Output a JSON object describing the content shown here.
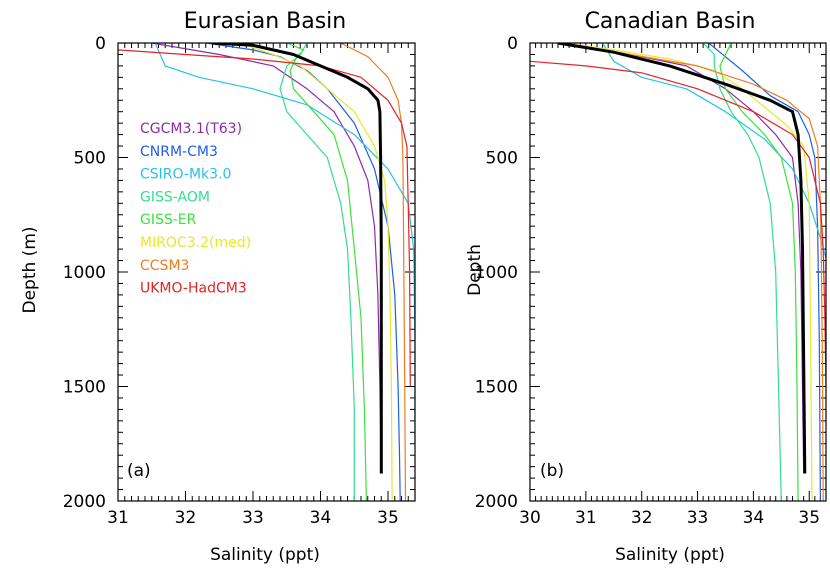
{
  "chart_data": [
    {
      "type": "line",
      "title": "Eurasian Basin",
      "xlabel": "Salinity (ppt)",
      "ylabel": "Depth (m)",
      "panel_label": "(a)",
      "xlim": [
        31,
        35.4
      ],
      "ylim": [
        0,
        2000
      ],
      "y_inverted": true,
      "x_ticks": [
        31,
        32,
        33,
        34,
        35
      ],
      "y_ticks": [
        0,
        500,
        1000,
        1500,
        2000
      ],
      "legend_position": "left-middle",
      "series": [
        {
          "name": "CGCM3.1(T63)",
          "color": "#8e2aa8",
          "x": [
            31.5,
            32.5,
            33.3,
            33.8,
            34.2,
            34.5,
            34.7,
            34.8,
            34.85,
            34.88,
            34.9
          ],
          "y": [
            0,
            50,
            100,
            200,
            300,
            450,
            600,
            800,
            1100,
            1500,
            1880
          ]
        },
        {
          "name": "CNRM-CM3",
          "color": "#1f5fe0",
          "x": [
            32.3,
            33.0,
            33.4,
            33.8,
            34.1,
            34.5,
            34.8,
            35.0,
            35.1,
            35.15,
            35.17,
            35.18
          ],
          "y": [
            0,
            30,
            60,
            120,
            200,
            350,
            550,
            800,
            1100,
            1500,
            1800,
            2000
          ]
        },
        {
          "name": "CSIRO-Mk3.0",
          "color": "#27c3e6",
          "x": [
            31.55,
            31.7,
            32.2,
            33.0,
            33.8,
            34.5,
            35.0,
            35.3,
            35.38,
            35.4,
            35.4
          ],
          "y": [
            0,
            100,
            150,
            200,
            270,
            400,
            550,
            700,
            900,
            1300,
            1750
          ]
        },
        {
          "name": "GISS-AOM",
          "color": "#33dd8f",
          "x": [
            33.8,
            33.7,
            33.5,
            33.4,
            33.5,
            33.8,
            34.1,
            34.3,
            34.4,
            34.45,
            34.5,
            34.5
          ],
          "y": [
            0,
            50,
            100,
            200,
            300,
            400,
            500,
            700,
            900,
            1200,
            1600,
            2000
          ]
        },
        {
          "name": "GISS-ER",
          "color": "#3ee03e",
          "x": [
            33.5,
            33.75,
            33.65,
            33.55,
            33.6,
            33.9,
            34.2,
            34.4,
            34.5,
            34.6,
            34.65,
            34.68
          ],
          "y": [
            0,
            30,
            60,
            120,
            200,
            300,
            400,
            600,
            900,
            1200,
            1600,
            2000
          ]
        },
        {
          "name": "MIROC3.2(med)",
          "color": "#e8e82a",
          "x": [
            32.8,
            33.3,
            33.7,
            34.1,
            34.5,
            34.8,
            34.95,
            35.0,
            35.03,
            35.05,
            35.06
          ],
          "y": [
            0,
            50,
            100,
            200,
            300,
            450,
            600,
            800,
            1100,
            1500,
            2000
          ]
        },
        {
          "name": "CCSM3",
          "color": "#f07d22",
          "x": [
            34.3,
            34.7,
            35.0,
            35.15,
            35.2,
            35.22,
            35.23,
            35.24,
            35.25,
            35.26
          ],
          "y": [
            0,
            60,
            150,
            250,
            350,
            500,
            800,
            1200,
            1600,
            2000
          ]
        },
        {
          "name": "UKMO-HadCM3",
          "color": "#e52323",
          "x": [
            31.0,
            32.0,
            33.0,
            34.0,
            34.6,
            35.0,
            35.2,
            35.28,
            35.3,
            35.32,
            35.33
          ],
          "y": [
            30,
            50,
            70,
            100,
            150,
            250,
            350,
            450,
            700,
            1000,
            1500
          ]
        },
        {
          "name": "",
          "color": "#000000",
          "width": 3,
          "x": [
            32.4,
            33.0,
            33.6,
            34.0,
            34.4,
            34.7,
            34.85,
            34.88,
            34.89,
            34.9,
            34.9,
            34.9
          ],
          "y": [
            0,
            10,
            50,
            100,
            150,
            200,
            250,
            300,
            500,
            900,
            1400,
            1880
          ]
        }
      ]
    },
    {
      "type": "line",
      "title": "Canadian Basin",
      "xlabel": "Salinity (ppt)",
      "ylabel": "Depth",
      "panel_label": "(b)",
      "xlim": [
        30,
        35.3
      ],
      "ylim": [
        0,
        2000
      ],
      "y_inverted": true,
      "x_ticks": [
        30,
        31,
        32,
        33,
        34,
        35
      ],
      "y_ticks": [
        0,
        500,
        1000,
        1500,
        2000
      ],
      "series": [
        {
          "name": "CGCM3.1(T63)",
          "color": "#8e2aa8",
          "x": [
            30.6,
            31.3,
            32.0,
            32.8,
            33.5,
            34.0,
            34.4,
            34.7,
            34.8,
            34.85,
            34.9
          ],
          "y": [
            0,
            30,
            60,
            100,
            200,
            300,
            400,
            500,
            700,
            1000,
            1880
          ]
        },
        {
          "name": "CNRM-CM3",
          "color": "#1f5fe0",
          "x": [
            33.2,
            33.4,
            33.8,
            34.3,
            34.8,
            35.0,
            35.1,
            35.15,
            35.18,
            35.2
          ],
          "y": [
            0,
            40,
            120,
            230,
            300,
            400,
            500,
            800,
            1300,
            2000
          ]
        },
        {
          "name": "CSIRO-Mk3.0",
          "color": "#27c3e6",
          "x": [
            31.3,
            31.5,
            32.0,
            32.8,
            33.5,
            34.2,
            34.7,
            35.0,
            35.2,
            35.3
          ],
          "y": [
            0,
            80,
            150,
            200,
            300,
            420,
            550,
            700,
            850,
            940
          ]
        },
        {
          "name": "GISS-AOM",
          "color": "#33dd8f",
          "x": [
            33.1,
            33.3,
            33.3,
            33.4,
            33.6,
            33.9,
            34.1,
            34.3,
            34.4,
            34.45,
            34.5
          ],
          "y": [
            0,
            50,
            100,
            200,
            300,
            400,
            500,
            700,
            1000,
            1500,
            2000
          ]
        },
        {
          "name": "GISS-ER",
          "color": "#3ee03e",
          "x": [
            33.6,
            33.5,
            33.4,
            33.5,
            33.8,
            34.2,
            34.5,
            34.7,
            34.75,
            34.78,
            34.8
          ],
          "y": [
            0,
            50,
            100,
            200,
            300,
            400,
            500,
            700,
            1000,
            1500,
            2000
          ]
        },
        {
          "name": "MIROC3.2(med)",
          "color": "#e8e82a",
          "x": [
            30.6,
            31.5,
            32.5,
            33.3,
            33.8,
            34.2,
            34.6,
            34.9,
            35.0,
            35.02,
            35.05
          ],
          "y": [
            0,
            30,
            70,
            120,
            200,
            280,
            360,
            450,
            700,
            1200,
            2000
          ]
        },
        {
          "name": "CCSM3",
          "color": "#f07d22",
          "x": [
            30.6,
            31.8,
            33.0,
            34.0,
            34.6,
            35.0,
            35.15,
            35.2,
            35.22,
            35.24,
            35.25
          ],
          "y": [
            0,
            50,
            100,
            180,
            250,
            330,
            450,
            700,
            1000,
            1500,
            2000
          ]
        },
        {
          "name": "UKMO-HadCM3",
          "color": "#e52323",
          "x": [
            30.0,
            31.0,
            32.0,
            33.0,
            34.0,
            34.7,
            35.0,
            35.2,
            35.25,
            35.28,
            35.3
          ],
          "y": [
            80,
            100,
            130,
            200,
            300,
            400,
            500,
            700,
            900,
            1200,
            1500
          ]
        },
        {
          "name": "",
          "color": "#000000",
          "width": 3,
          "x": [
            30.5,
            31.5,
            32.5,
            33.5,
            34.3,
            34.7,
            34.8,
            34.85,
            34.88,
            34.9,
            34.92
          ],
          "y": [
            0,
            40,
            100,
            180,
            250,
            300,
            400,
            600,
            900,
            1400,
            1880
          ]
        }
      ]
    }
  ]
}
